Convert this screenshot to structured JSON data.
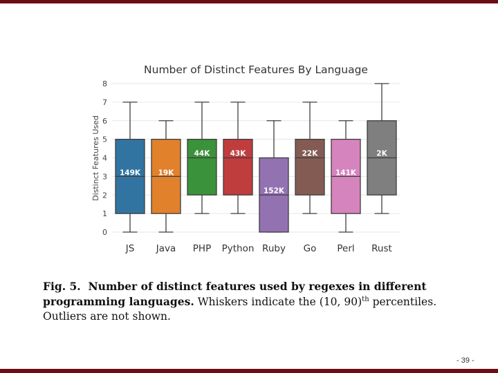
{
  "chart_data": {
    "type": "box",
    "title": "Number of Distinct Features By Language",
    "ylabel": "Distinct Features Used",
    "xlabel": "",
    "ylim": [
      0,
      8
    ],
    "yticks": [
      0,
      1,
      2,
      3,
      4,
      5,
      6,
      7,
      8
    ],
    "grid": true,
    "categories": [
      "JS",
      "Java",
      "PHP",
      "Python",
      "Ruby",
      "Go",
      "Perl",
      "Rust"
    ],
    "boxes": [
      {
        "name": "JS",
        "whisker_low": 0,
        "q1": 1,
        "median": 3,
        "q3": 5,
        "whisker_high": 7,
        "count_label": "149K",
        "color": "#3274a1"
      },
      {
        "name": "Java",
        "whisker_low": 0,
        "q1": 1,
        "median": 3,
        "q3": 5,
        "whisker_high": 6,
        "count_label": "19K",
        "color": "#e1812c"
      },
      {
        "name": "PHP",
        "whisker_low": 1,
        "q1": 2,
        "median": 4,
        "q3": 5,
        "whisker_high": 7,
        "count_label": "44K",
        "color": "#3a923a"
      },
      {
        "name": "Python",
        "whisker_low": 1,
        "q1": 2,
        "median": 4,
        "q3": 5,
        "whisker_high": 7,
        "count_label": "43K",
        "color": "#c03d3e"
      },
      {
        "name": "Ruby",
        "whisker_low": 0,
        "q1": 0,
        "median": 2,
        "q3": 4,
        "whisker_high": 6,
        "count_label": "152K",
        "color": "#9372b2"
      },
      {
        "name": "Go",
        "whisker_low": 1,
        "q1": 2,
        "median": 4,
        "q3": 5,
        "whisker_high": 7,
        "count_label": "22K",
        "color": "#845b53"
      },
      {
        "name": "Perl",
        "whisker_low": 0,
        "q1": 1,
        "median": 3,
        "q3": 5,
        "whisker_high": 6,
        "count_label": "141K",
        "color": "#d684bd"
      },
      {
        "name": "Rust",
        "whisker_low": 1,
        "q1": 2,
        "median": 4,
        "q3": 6,
        "whisker_high": 8,
        "count_label": "2K",
        "color": "#7f7f7f"
      }
    ]
  },
  "caption": {
    "fig_label": "Fig. 5.",
    "bold_text": "Number of distinct features used by regexes in different programming languages.",
    "rest_before": "Whiskers indicate the (10, 90)",
    "superscript": "th",
    "rest_after": "percentiles. Outliers are not shown."
  },
  "page_number": "- 39 -",
  "colors": {
    "accent_bar": "#6b0f14"
  }
}
